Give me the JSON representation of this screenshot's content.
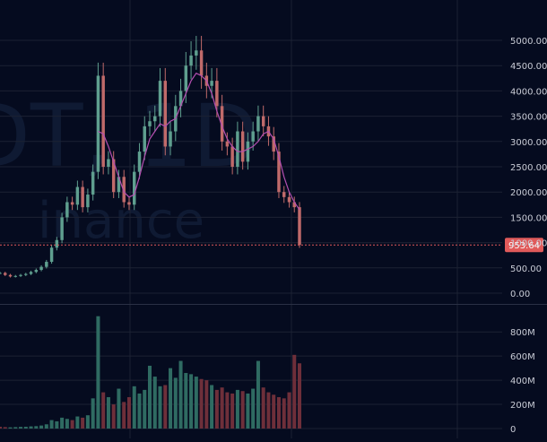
{
  "theme": {
    "background": "#050b1f",
    "grid": "#1c2233",
    "axis_text": "#c9ccd6",
    "candle_up": "#5f9f8f",
    "candle_down": "#c06a6a",
    "volume_up": "#2f6b62",
    "volume_down": "#6e2f3a",
    "ma_line": "#b44fb0",
    "price_line": "#e05a5a",
    "price_badge": "#e05a5a",
    "watermark": "#0f1a33"
  },
  "watermark": {
    "symbol": "DT, 1D",
    "exchange": "inance"
  },
  "chart_data": [
    {
      "type": "line",
      "title": "",
      "subtitle": "",
      "xlabel": "",
      "ylabel": "",
      "ylim": [
        0,
        5000
      ],
      "yticks": [
        "5000.00",
        "4500.00",
        "4000.00",
        "3500.00",
        "3000.00",
        "2500.00",
        "2000.00",
        "1500.00",
        "1000.00",
        "500.00",
        "0.00"
      ],
      "ytick_values": [
        5000,
        4500,
        4000,
        3500,
        3000,
        2500,
        2000,
        1500,
        1000,
        500,
        0
      ],
      "last_price": 953.64,
      "last_price_label": "953.64",
      "grid": true,
      "series": [
        {
          "values": [
            400,
            360,
            330,
            340,
            360,
            380,
            420,
            460,
            520,
            620,
            900,
            1050,
            1500,
            1800,
            1750,
            2100,
            1700,
            1950,
            2400,
            4300,
            2500,
            2650,
            2000,
            2300,
            1800,
            1750,
            2400,
            2800,
            3300,
            3400,
            3500,
            4200,
            2900,
            3200,
            3700,
            4000,
            4500,
            4700,
            4800,
            4300,
            4100,
            4200,
            3700,
            3000,
            2900,
            2500,
            3200,
            2600,
            3000,
            3200,
            3500,
            3300,
            3100,
            2800,
            2000,
            1900,
            1800,
            1700,
            953.64
          ]
        },
        {
          "values": [
            null,
            null,
            null,
            null,
            null,
            null,
            null,
            null,
            null,
            null,
            null,
            null,
            null,
            null,
            null,
            null,
            null,
            null,
            null,
            3200,
            3150,
            2900,
            2600,
            2300,
            2000,
            1900,
            1950,
            2300,
            2700,
            3050,
            3200,
            3350,
            3300,
            3400,
            3450,
            3700,
            3950,
            4200,
            4350,
            4300,
            4200,
            3950,
            3600,
            3300,
            3050,
            2900,
            2800,
            2800,
            2850,
            2900,
            3000,
            3150,
            3200,
            3050,
            2700,
            2300,
            2000,
            1800,
            1650
          ]
        }
      ]
    },
    {
      "type": "bar",
      "ylim": [
        0,
        950
      ],
      "yticks": [
        "800M",
        "600M",
        "400M",
        "200M",
        "0"
      ],
      "ytick_values": [
        800,
        600,
        400,
        200,
        0
      ],
      "values": [
        15,
        12,
        10,
        12,
        14,
        15,
        18,
        20,
        25,
        35,
        70,
        60,
        90,
        80,
        70,
        100,
        90,
        110,
        250,
        930,
        300,
        260,
        200,
        330,
        220,
        260,
        350,
        290,
        320,
        520,
        430,
        350,
        360,
        500,
        420,
        560,
        460,
        450,
        430,
        410,
        400,
        360,
        320,
        340,
        300,
        290,
        320,
        310,
        290,
        330,
        560,
        340,
        300,
        280,
        260,
        250,
        300,
        610,
        540
      ],
      "directions": [
        "d",
        "d",
        "u",
        "u",
        "u",
        "u",
        "u",
        "u",
        "u",
        "u",
        "u",
        "u",
        "u",
        "u",
        "d",
        "u",
        "d",
        "u",
        "u",
        "u",
        "d",
        "u",
        "d",
        "u",
        "d",
        "d",
        "u",
        "u",
        "u",
        "u",
        "u",
        "u",
        "d",
        "u",
        "u",
        "u",
        "u",
        "u",
        "u",
        "d",
        "d",
        "u",
        "d",
        "d",
        "d",
        "d",
        "u",
        "d",
        "u",
        "u",
        "u",
        "d",
        "d",
        "d",
        "d",
        "d",
        "d",
        "d",
        "d"
      ]
    }
  ]
}
